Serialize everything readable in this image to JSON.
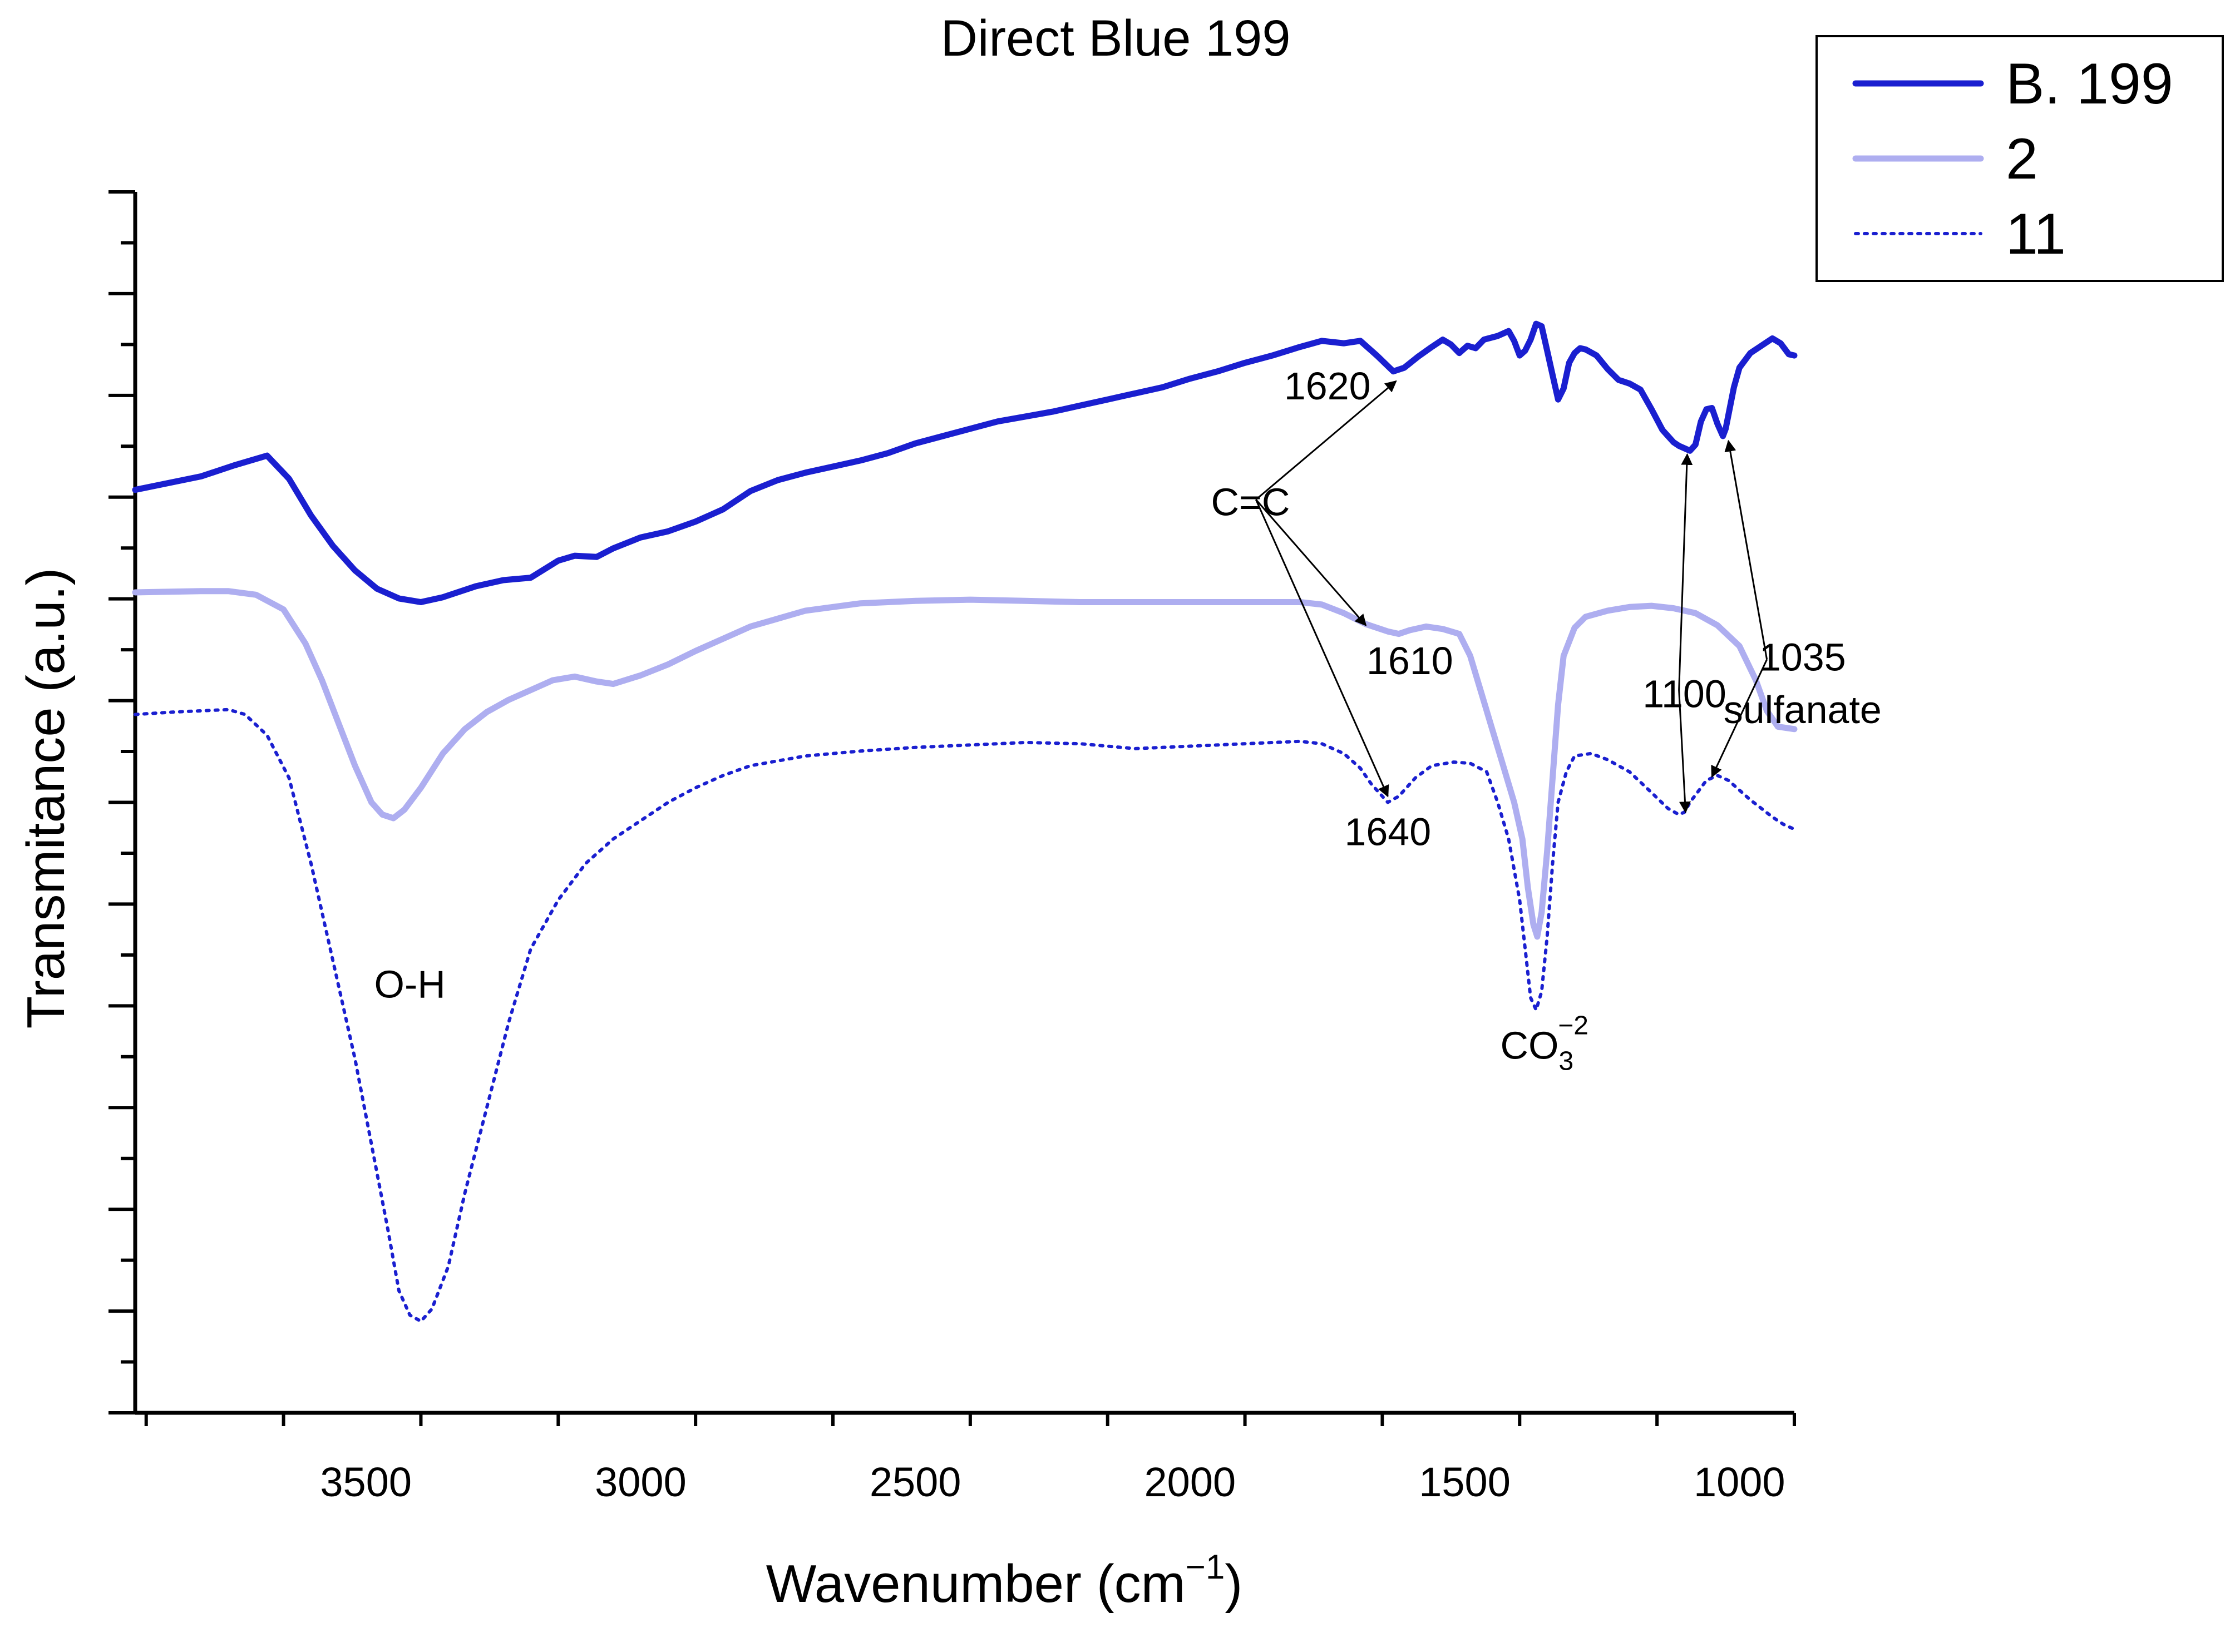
{
  "chart_data": {
    "type": "line",
    "title": "Direct Blue 199",
    "xlabel": {
      "text": "Wavenumber (cm",
      "sup": "−1",
      "suffix": ")"
    },
    "ylabel": "Transmitance (a.u.)",
    "xlim": [
      3920,
      900
    ],
    "x_direction": "reversed",
    "y_ticklabels_shown": false,
    "xticks": [
      3500,
      3000,
      2500,
      2000,
      1500,
      1000
    ],
    "xtick_labels": [
      "3500",
      "3000",
      "2500",
      "2000",
      "1500",
      "1000"
    ],
    "legend": {
      "placement": "top-right"
    },
    "series": [
      {
        "name": "B. 199",
        "color": "#1a1fd0",
        "line_style": "solid-thick",
        "points": [
          [
            3920,
            0.756
          ],
          [
            3800,
            0.767
          ],
          [
            3740,
            0.776
          ],
          [
            3680,
            0.784
          ],
          [
            3640,
            0.765
          ],
          [
            3600,
            0.735
          ],
          [
            3560,
            0.71
          ],
          [
            3520,
            0.69
          ],
          [
            3480,
            0.675
          ],
          [
            3440,
            0.667
          ],
          [
            3400,
            0.664
          ],
          [
            3360,
            0.668
          ],
          [
            3300,
            0.677
          ],
          [
            3250,
            0.682
          ],
          [
            3200,
            0.684
          ],
          [
            3150,
            0.698
          ],
          [
            3120,
            0.702
          ],
          [
            3080,
            0.701
          ],
          [
            3050,
            0.708
          ],
          [
            3000,
            0.717
          ],
          [
            2950,
            0.722
          ],
          [
            2900,
            0.73
          ],
          [
            2850,
            0.74
          ],
          [
            2800,
            0.755
          ],
          [
            2750,
            0.764
          ],
          [
            2700,
            0.77
          ],
          [
            2650,
            0.775
          ],
          [
            2600,
            0.78
          ],
          [
            2550,
            0.786
          ],
          [
            2500,
            0.794
          ],
          [
            2450,
            0.8
          ],
          [
            2400,
            0.806
          ],
          [
            2350,
            0.812
          ],
          [
            2300,
            0.816
          ],
          [
            2250,
            0.82
          ],
          [
            2200,
            0.825
          ],
          [
            2150,
            0.83
          ],
          [
            2100,
            0.835
          ],
          [
            2050,
            0.84
          ],
          [
            2000,
            0.847
          ],
          [
            1950,
            0.853
          ],
          [
            1900,
            0.86
          ],
          [
            1850,
            0.866
          ],
          [
            1800,
            0.873
          ],
          [
            1760,
            0.878
          ],
          [
            1720,
            0.876
          ],
          [
            1690,
            0.878
          ],
          [
            1660,
            0.866
          ],
          [
            1630,
            0.853
          ],
          [
            1610,
            0.856
          ],
          [
            1585,
            0.865
          ],
          [
            1560,
            0.873
          ],
          [
            1540,
            0.879
          ],
          [
            1525,
            0.875
          ],
          [
            1510,
            0.868
          ],
          [
            1495,
            0.874
          ],
          [
            1480,
            0.872
          ],
          [
            1465,
            0.879
          ],
          [
            1440,
            0.882
          ],
          [
            1420,
            0.886
          ],
          [
            1410,
            0.878
          ],
          [
            1400,
            0.866
          ],
          [
            1390,
            0.87
          ],
          [
            1380,
            0.879
          ],
          [
            1370,
            0.892
          ],
          [
            1360,
            0.89
          ],
          [
            1350,
            0.87
          ],
          [
            1340,
            0.85
          ],
          [
            1330,
            0.83
          ],
          [
            1320,
            0.839
          ],
          [
            1310,
            0.86
          ],
          [
            1300,
            0.868
          ],
          [
            1290,
            0.872
          ],
          [
            1280,
            0.871
          ],
          [
            1260,
            0.866
          ],
          [
            1240,
            0.855
          ],
          [
            1220,
            0.846
          ],
          [
            1200,
            0.843
          ],
          [
            1180,
            0.838
          ],
          [
            1160,
            0.822
          ],
          [
            1140,
            0.805
          ],
          [
            1130,
            0.8
          ],
          [
            1120,
            0.795
          ],
          [
            1110,
            0.792
          ],
          [
            1100,
            0.79
          ],
          [
            1090,
            0.788
          ],
          [
            1080,
            0.793
          ],
          [
            1070,
            0.812
          ],
          [
            1060,
            0.822
          ],
          [
            1050,
            0.823
          ],
          [
            1040,
            0.81
          ],
          [
            1030,
            0.8
          ],
          [
            1025,
            0.806
          ],
          [
            1010,
            0.84
          ],
          [
            1000,
            0.856
          ],
          [
            980,
            0.868
          ],
          [
            960,
            0.874
          ],
          [
            940,
            0.88
          ],
          [
            925,
            0.876
          ],
          [
            910,
            0.867
          ],
          [
            900,
            0.866
          ]
        ]
      },
      {
        "name": "2",
        "color": "#aeaef0",
        "line_style": "solid-thick",
        "points": [
          [
            3920,
            0.672
          ],
          [
            3800,
            0.673
          ],
          [
            3750,
            0.673
          ],
          [
            3700,
            0.67
          ],
          [
            3650,
            0.658
          ],
          [
            3610,
            0.63
          ],
          [
            3580,
            0.6
          ],
          [
            3550,
            0.565
          ],
          [
            3520,
            0.53
          ],
          [
            3490,
            0.5
          ],
          [
            3470,
            0.49
          ],
          [
            3450,
            0.487
          ],
          [
            3430,
            0.494
          ],
          [
            3400,
            0.512
          ],
          [
            3360,
            0.54
          ],
          [
            3320,
            0.56
          ],
          [
            3280,
            0.574
          ],
          [
            3240,
            0.584
          ],
          [
            3200,
            0.592
          ],
          [
            3160,
            0.6
          ],
          [
            3120,
            0.603
          ],
          [
            3080,
            0.599
          ],
          [
            3050,
            0.597
          ],
          [
            3000,
            0.604
          ],
          [
            2950,
            0.613
          ],
          [
            2900,
            0.624
          ],
          [
            2850,
            0.634
          ],
          [
            2800,
            0.644
          ],
          [
            2700,
            0.657
          ],
          [
            2600,
            0.663
          ],
          [
            2500,
            0.665
          ],
          [
            2400,
            0.666
          ],
          [
            2300,
            0.665
          ],
          [
            2200,
            0.664
          ],
          [
            2100,
            0.664
          ],
          [
            2000,
            0.664
          ],
          [
            1900,
            0.664
          ],
          [
            1800,
            0.664
          ],
          [
            1760,
            0.662
          ],
          [
            1720,
            0.655
          ],
          [
            1680,
            0.646
          ],
          [
            1640,
            0.64
          ],
          [
            1620,
            0.638
          ],
          [
            1600,
            0.641
          ],
          [
            1570,
            0.644
          ],
          [
            1540,
            0.642
          ],
          [
            1510,
            0.638
          ],
          [
            1490,
            0.62
          ],
          [
            1470,
            0.59
          ],
          [
            1450,
            0.56
          ],
          [
            1430,
            0.53
          ],
          [
            1410,
            0.5
          ],
          [
            1395,
            0.47
          ],
          [
            1385,
            0.43
          ],
          [
            1375,
            0.4
          ],
          [
            1368,
            0.39
          ],
          [
            1360,
            0.41
          ],
          [
            1350,
            0.46
          ],
          [
            1340,
            0.52
          ],
          [
            1330,
            0.58
          ],
          [
            1320,
            0.62
          ],
          [
            1300,
            0.643
          ],
          [
            1280,
            0.652
          ],
          [
            1240,
            0.657
          ],
          [
            1200,
            0.66
          ],
          [
            1160,
            0.661
          ],
          [
            1120,
            0.659
          ],
          [
            1080,
            0.655
          ],
          [
            1040,
            0.645
          ],
          [
            1000,
            0.628
          ],
          [
            970,
            0.6
          ],
          [
            950,
            0.575
          ],
          [
            930,
            0.562
          ],
          [
            900,
            0.56
          ]
        ]
      },
      {
        "name": "11",
        "color": "#1a1fd0",
        "line_style": "dotted",
        "points": [
          [
            3920,
            0.572
          ],
          [
            3850,
            0.574
          ],
          [
            3750,
            0.576
          ],
          [
            3720,
            0.572
          ],
          [
            3680,
            0.555
          ],
          [
            3640,
            0.52
          ],
          [
            3600,
            0.45
          ],
          [
            3560,
            0.37
          ],
          [
            3520,
            0.29
          ],
          [
            3490,
            0.22
          ],
          [
            3460,
            0.15
          ],
          [
            3440,
            0.1
          ],
          [
            3420,
            0.08
          ],
          [
            3400,
            0.075
          ],
          [
            3380,
            0.085
          ],
          [
            3350,
            0.12
          ],
          [
            3320,
            0.18
          ],
          [
            3280,
            0.25
          ],
          [
            3240,
            0.32
          ],
          [
            3200,
            0.38
          ],
          [
            3150,
            0.42
          ],
          [
            3100,
            0.45
          ],
          [
            3050,
            0.47
          ],
          [
            3000,
            0.485
          ],
          [
            2950,
            0.5
          ],
          [
            2900,
            0.512
          ],
          [
            2850,
            0.522
          ],
          [
            2800,
            0.53
          ],
          [
            2700,
            0.538
          ],
          [
            2600,
            0.542
          ],
          [
            2500,
            0.545
          ],
          [
            2400,
            0.547
          ],
          [
            2300,
            0.549
          ],
          [
            2200,
            0.548
          ],
          [
            2100,
            0.544
          ],
          [
            2000,
            0.546
          ],
          [
            1900,
            0.548
          ],
          [
            1800,
            0.55
          ],
          [
            1760,
            0.548
          ],
          [
            1720,
            0.54
          ],
          [
            1690,
            0.528
          ],
          [
            1670,
            0.515
          ],
          [
            1640,
            0.5
          ],
          [
            1620,
            0.505
          ],
          [
            1590,
            0.52
          ],
          [
            1560,
            0.53
          ],
          [
            1520,
            0.533
          ],
          [
            1490,
            0.532
          ],
          [
            1460,
            0.525
          ],
          [
            1440,
            0.5
          ],
          [
            1420,
            0.47
          ],
          [
            1400,
            0.42
          ],
          [
            1390,
            0.38
          ],
          [
            1380,
            0.34
          ],
          [
            1370,
            0.33
          ],
          [
            1360,
            0.345
          ],
          [
            1350,
            0.39
          ],
          [
            1340,
            0.45
          ],
          [
            1330,
            0.5
          ],
          [
            1315,
            0.525
          ],
          [
            1300,
            0.538
          ],
          [
            1270,
            0.54
          ],
          [
            1240,
            0.535
          ],
          [
            1200,
            0.525
          ],
          [
            1160,
            0.508
          ],
          [
            1130,
            0.495
          ],
          [
            1110,
            0.49
          ],
          [
            1100,
            0.492
          ],
          [
            1090,
            0.5
          ],
          [
            1070,
            0.512
          ],
          [
            1060,
            0.518
          ],
          [
            1050,
            0.52
          ],
          [
            1040,
            0.522
          ],
          [
            1020,
            0.518
          ],
          [
            1000,
            0.51
          ],
          [
            980,
            0.502
          ],
          [
            960,
            0.495
          ],
          [
            940,
            0.488
          ],
          [
            920,
            0.482
          ],
          [
            900,
            0.478
          ]
        ]
      }
    ],
    "annotations": [
      {
        "text": "1620",
        "x": 1750,
        "y": 0.83
      },
      {
        "text": "C=C",
        "x": 1890,
        "y": 0.735
      },
      {
        "text": "1610",
        "x": 1600,
        "y": 0.605
      },
      {
        "text": "1640",
        "x": 1640,
        "y": 0.465
      },
      {
        "text": "1100",
        "x": 1100,
        "y": 0.578
      },
      {
        "text": "1035",
        "x": 885,
        "y": 0.608
      },
      {
        "text": "sulfanate",
        "x": 885,
        "y": 0.565
      },
      {
        "text": "O-H",
        "x": 3420,
        "y": 0.34
      },
      {
        "text": "CO",
        "sub": "3",
        "sup": "−2",
        "x": 1355,
        "y": 0.29
      }
    ]
  }
}
